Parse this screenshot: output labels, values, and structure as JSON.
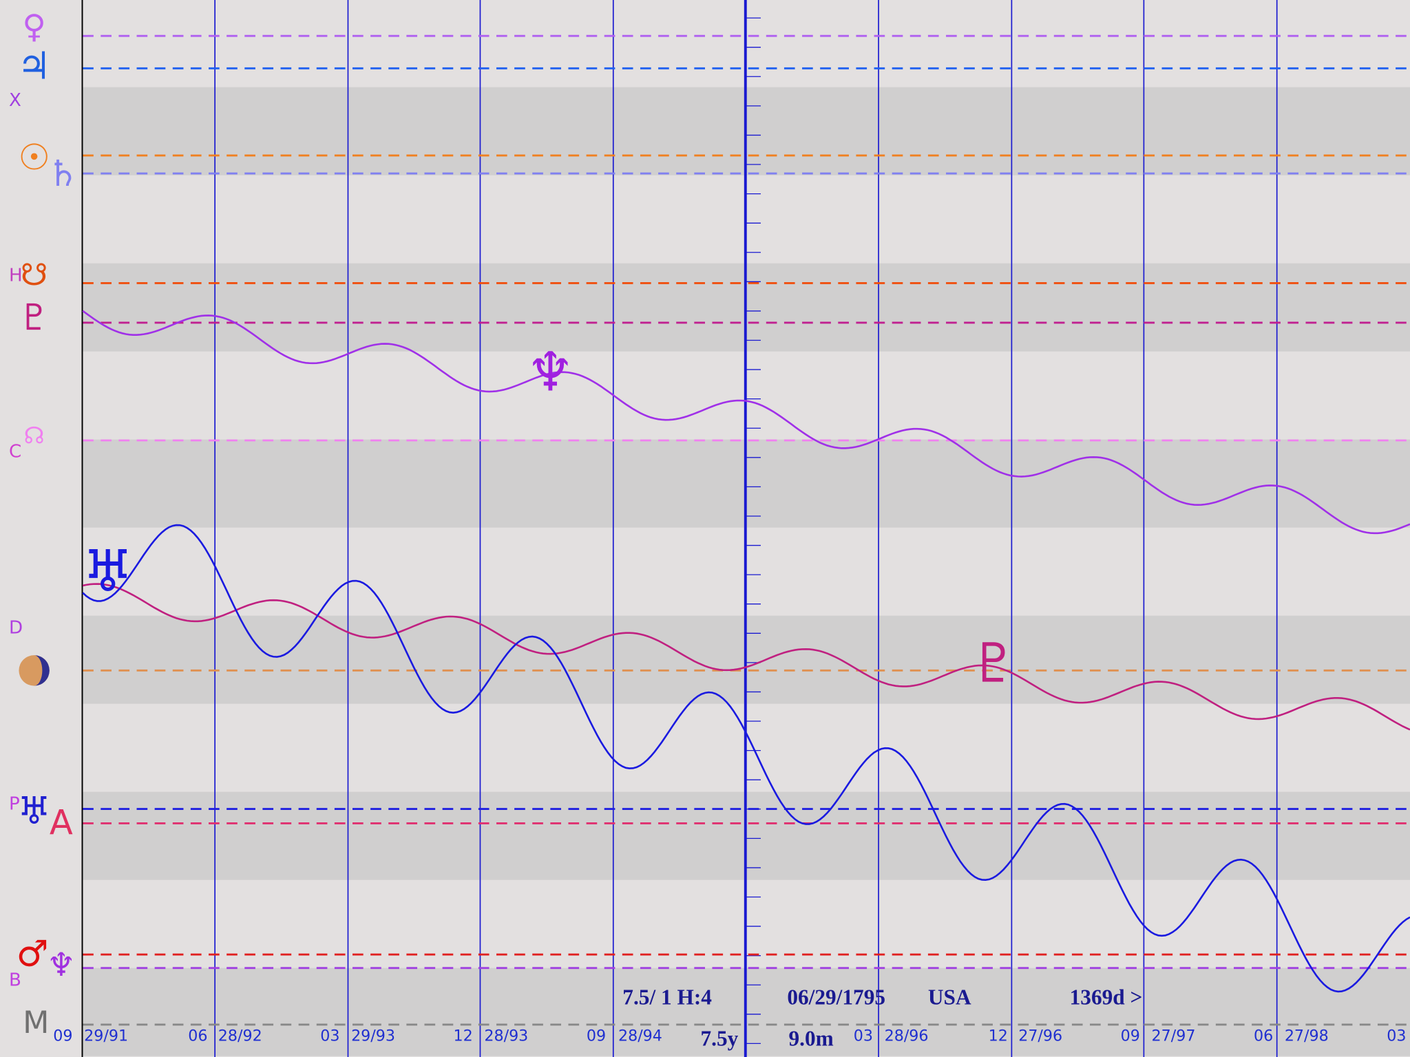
{
  "left_labels": [
    "X",
    "H",
    "C",
    "D",
    "P",
    "B",
    "M"
  ],
  "glyphs": [
    "♀",
    "♃",
    "☉",
    "♄",
    "☋",
    "♇",
    "☊",
    "♅",
    "A",
    "♂",
    "♆"
  ],
  "markers": [
    "♆",
    "♅",
    "♇"
  ],
  "x_labels": [
    "09",
    "29/91",
    "06",
    "28/92",
    "03",
    "29/93",
    "12",
    "28/93",
    "09",
    "28/94",
    "03",
    "28/96",
    "12",
    "27/96",
    "09",
    "27/97",
    "06",
    "27/98",
    "03"
  ],
  "info": {
    "setting": "7.5/ 1 H:4",
    "date": "06/29/1795",
    "place": "USA",
    "span": "1369d >",
    "range": "7.5y",
    "step": "9.0m"
  }
}
